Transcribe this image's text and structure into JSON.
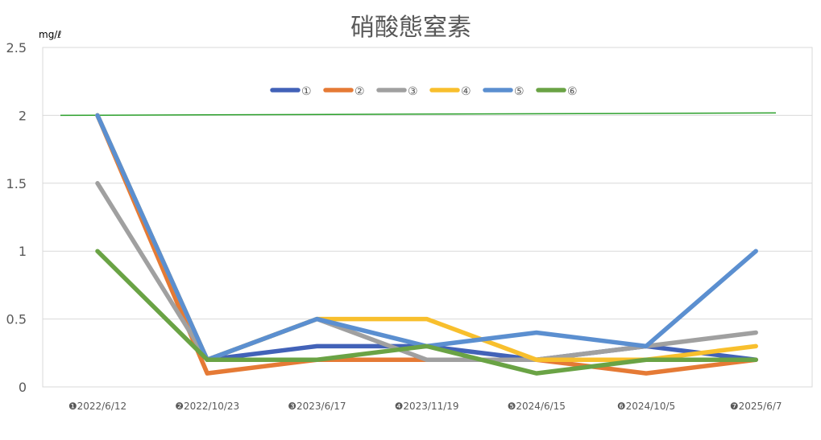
{
  "chart_data": {
    "type": "line",
    "title": "硝酸態窒素",
    "ylabel": "mg/ℓ",
    "xlabel": "",
    "ylim": [
      0,
      2.5
    ],
    "yticks": [
      "0",
      "0.5",
      "1",
      "1.5",
      "2",
      "2.5"
    ],
    "grid": true,
    "legend": "top-center",
    "categories": [
      "❶2022/6/12",
      "❷2022/10/23",
      "❸2023/6/17",
      "❹2023/11/19",
      "❺2024/6/15",
      "❻2024/10/5",
      "❼2025/6/7"
    ],
    "reference_line": {
      "value": 2,
      "color": "#2ca02c"
    },
    "series": [
      {
        "name": "①",
        "color": "#4262b8",
        "values": [
          2,
          0.2,
          0.3,
          0.3,
          0.2,
          0.3,
          0.2
        ]
      },
      {
        "name": "②",
        "color": "#e57a35",
        "values": [
          2,
          0.1,
          0.2,
          0.2,
          0.2,
          0.1,
          0.2
        ]
      },
      {
        "name": "③",
        "color": "#a0a0a0",
        "values": [
          1.5,
          0.2,
          0.5,
          0.2,
          0.2,
          0.3,
          0.4
        ]
      },
      {
        "name": "④",
        "color": "#f8bf2d",
        "values": [
          2,
          0.2,
          0.5,
          0.5,
          0.2,
          0.2,
          0.3
        ]
      },
      {
        "name": "⑤",
        "color": "#5b8fd0",
        "values": [
          2,
          0.2,
          0.5,
          0.3,
          0.4,
          0.3,
          1
        ]
      },
      {
        "name": "⑥",
        "color": "#6aa345",
        "values": [
          1,
          0.2,
          0.2,
          0.3,
          0.1,
          0.2,
          0.2
        ]
      }
    ]
  }
}
